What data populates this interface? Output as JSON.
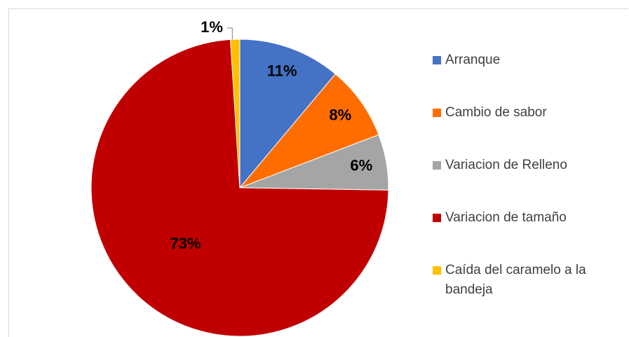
{
  "chart_data": {
    "type": "pie",
    "categories": [
      "Arranque",
      "Cambio de sabor",
      "Variacion de Relleno",
      "Variacion de tamaño",
      "Caída del caramelo a la bandeja"
    ],
    "values": [
      11,
      8,
      6,
      73,
      1
    ],
    "value_labels": [
      "11%",
      "8%",
      "6%",
      "73%",
      "1%"
    ],
    "colors": [
      "#4472c4",
      "#ff6d00",
      "#a5a5a5",
      "#c00000",
      "#ffc000"
    ],
    "legend": "right"
  }
}
